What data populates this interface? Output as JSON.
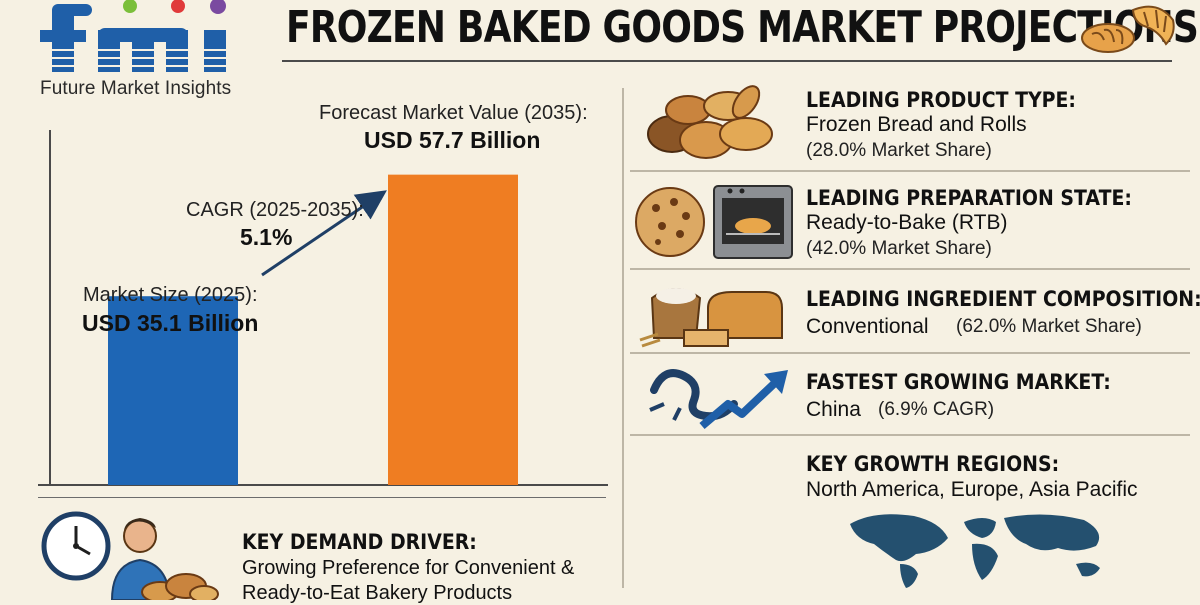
{
  "header": {
    "title": "FROZEN BAKED GOODS MARKET PROJECTIONS",
    "brand_mark": "fmi",
    "brand_name": "Future Market Insights"
  },
  "colors": {
    "market_size_bar": "#1e66b5",
    "forecast_bar": "#ef7d22",
    "logo_blue": "#1f5fa8",
    "background": "#f6f1e3"
  },
  "chart_data": {
    "type": "bar",
    "categories": [
      "Market Size (2025):",
      "Forecast Market Value (2035):"
    ],
    "values": [
      35.1,
      57.7
    ],
    "value_labels": [
      "USD 35.1 Billion",
      "USD 57.7 Billion"
    ],
    "cagr_label": "CAGR (2025-2035):",
    "cagr_value": "5.1%",
    "ylim": [
      0,
      66
    ]
  },
  "highlights": [
    {
      "heading": "LEADING PRODUCT TYPE:",
      "value": "Frozen Bread and Rolls",
      "sub": "(28.0% Market Share)",
      "icon": "bread-basket-icon"
    },
    {
      "heading": "LEADING PREPARATION STATE:",
      "value": "Ready-to-Bake (RTB)",
      "sub": "(42.0% Market Share)",
      "icon": "oven-icon"
    },
    {
      "heading": "LEADING INGREDIENT COMPOSITION:",
      "value": "Conventional",
      "sub": "(62.0% Market Share)",
      "icon": "flour-bread-icon"
    },
    {
      "heading": "FASTEST GROWING MARKET:",
      "value": "China",
      "sub": "(6.9% CAGR)",
      "icon": "dragon-growth-icon"
    },
    {
      "heading": "KEY GROWTH REGIONS:",
      "value": "North America, Europe, Asia Pacific",
      "icon": "world-map-icon"
    }
  ],
  "demand_driver": {
    "heading": "KEY DEMAND DRIVER:",
    "line1": "Growing Preference for Convenient &",
    "line2": "Ready-to-Eat Bakery Products",
    "icons": [
      "clock-icon",
      "person-icon",
      "pastries-icon"
    ]
  }
}
